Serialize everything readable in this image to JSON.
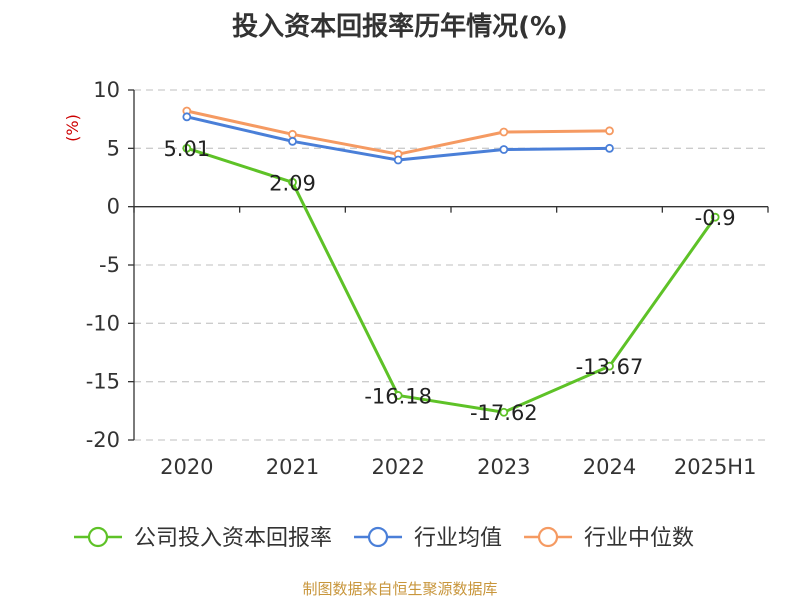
{
  "chart_data": {
    "type": "line",
    "title": "投入资本回报率历年情况(%)",
    "ylabel": "(%)",
    "categories": [
      "2020",
      "2021",
      "2022",
      "2023",
      "2024",
      "2025H1"
    ],
    "ylim": [
      -20,
      10
    ],
    "yticks": [
      10,
      5,
      0,
      -5,
      -10,
      -15,
      -20
    ],
    "grid": true,
    "legend_position": "bottom",
    "series": [
      {
        "name": "公司投入资本回报率",
        "color": "#5ec227",
        "values": [
          5.01,
          2.09,
          -16.18,
          -17.62,
          -13.67,
          -0.9
        ],
        "labels": [
          "5.01",
          "2.09",
          "-16.18",
          "-17.62",
          "-13.67",
          "-0.9"
        ]
      },
      {
        "name": "行业均值",
        "color": "#4a7fd8",
        "values": [
          7.7,
          5.6,
          4.0,
          4.9,
          5.0,
          null
        ]
      },
      {
        "name": "行业中位数",
        "color": "#f59a62",
        "values": [
          8.2,
          6.2,
          4.5,
          6.4,
          6.5,
          null
        ]
      }
    ],
    "source": "制图数据来自恒生聚源数据库"
  },
  "colors": {
    "unit_label": "#cc0000",
    "source_text": "#c8963c",
    "axis": "#333333",
    "grid": "#cccccc"
  }
}
